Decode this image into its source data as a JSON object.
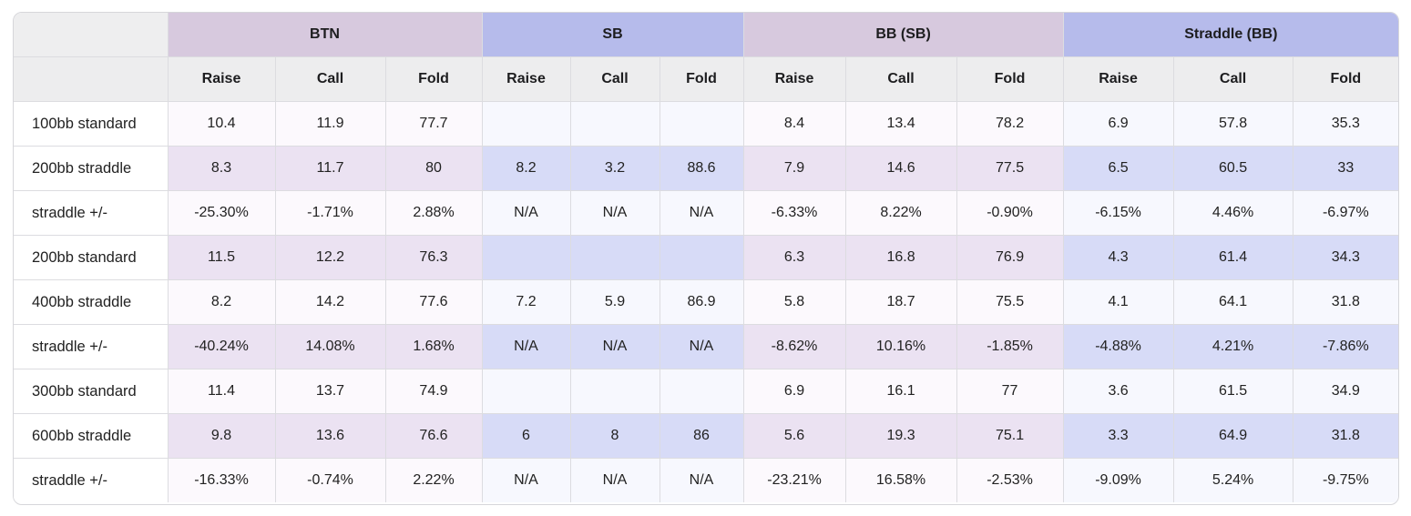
{
  "groups": [
    "BTN",
    "SB",
    "BB (SB)",
    "Straddle (BB)"
  ],
  "subheaders": [
    "Raise",
    "Call",
    "Fold",
    "Raise",
    "Call",
    "Fold",
    "Raise",
    "Call",
    "Fold",
    "Raise",
    "Call",
    "Fold"
  ],
  "rows": [
    {
      "label": "100bb standard",
      "cells": [
        "10.4",
        "11.9",
        "77.7",
        "",
        "",
        "",
        "8.4",
        "13.4",
        "78.2",
        "6.9",
        "57.8",
        "35.3"
      ]
    },
    {
      "label": "200bb straddle",
      "cells": [
        "8.3",
        "11.7",
        "80",
        "8.2",
        "3.2",
        "88.6",
        "7.9",
        "14.6",
        "77.5",
        "6.5",
        "60.5",
        "33"
      ]
    },
    {
      "label": "straddle +/-",
      "cells": [
        "-25.30%",
        "-1.71%",
        "2.88%",
        "N/A",
        "N/A",
        "N/A",
        "-6.33%",
        "8.22%",
        "-0.90%",
        "-6.15%",
        "4.46%",
        "-6.97%"
      ]
    },
    {
      "label": "200bb standard",
      "cells": [
        "11.5",
        "12.2",
        "76.3",
        "",
        "",
        "",
        "6.3",
        "16.8",
        "76.9",
        "4.3",
        "61.4",
        "34.3"
      ]
    },
    {
      "label": "400bb straddle",
      "cells": [
        "8.2",
        "14.2",
        "77.6",
        "7.2",
        "5.9",
        "86.9",
        "5.8",
        "18.7",
        "75.5",
        "4.1",
        "64.1",
        "31.8"
      ]
    },
    {
      "label": "straddle +/-",
      "cells": [
        "-40.24%",
        "14.08%",
        "1.68%",
        "N/A",
        "N/A",
        "N/A",
        "-8.62%",
        "10.16%",
        "-1.85%",
        "-4.88%",
        "4.21%",
        "-7.86%"
      ]
    },
    {
      "label": "300bb standard",
      "cells": [
        "11.4",
        "13.7",
        "74.9",
        "",
        "",
        "",
        "6.9",
        "16.1",
        "77",
        "3.6",
        "61.5",
        "34.9"
      ]
    },
    {
      "label": "600bb straddle",
      "cells": [
        "9.8",
        "13.6",
        "76.6",
        "6",
        "8",
        "86",
        "5.6",
        "19.3",
        "75.1",
        "3.3",
        "64.9",
        "31.8"
      ]
    },
    {
      "label": "straddle +/-",
      "cells": [
        "-16.33%",
        "-0.74%",
        "2.22%",
        "N/A",
        "N/A",
        "N/A",
        "-23.21%",
        "16.58%",
        "-2.53%",
        "-9.09%",
        "5.24%",
        "-9.75%"
      ]
    }
  ]
}
